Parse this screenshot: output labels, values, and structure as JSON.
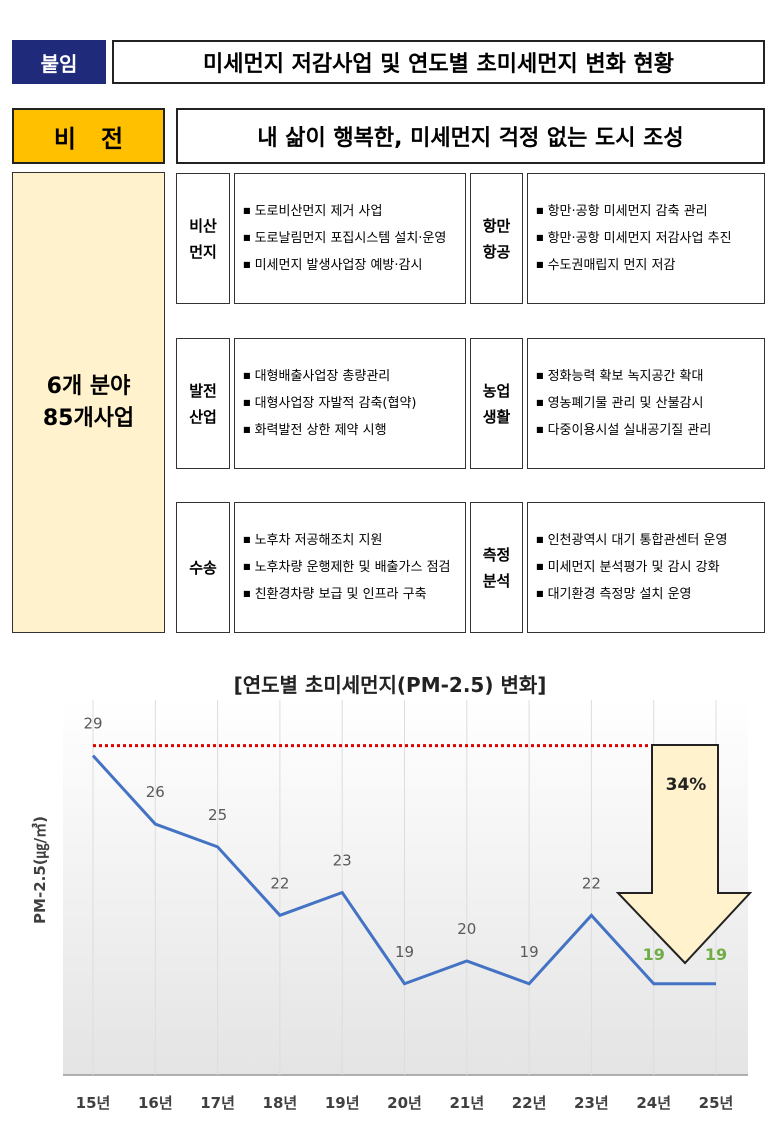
{
  "header": {
    "tag": "붙임",
    "title": "미세먼지 저감사업 및 연도별 초미세먼지 변화 현황"
  },
  "vision": {
    "label": "비   전",
    "text": "내 삶이 행복한, 미세먼지 걱정 없는 도시 조성"
  },
  "summary": {
    "lines": [
      "6개 분야",
      "85개사업"
    ]
  },
  "sectors": [
    {
      "label": [
        "비산",
        "먼지"
      ],
      "items": [
        "도로비산먼지 제거 사업",
        "도로날림먼지 포집시스템 설치·운영",
        "미세먼지 발생사업장 예방·감시"
      ]
    },
    {
      "label": [
        "항만",
        "항공"
      ],
      "items": [
        "항만·공항 미세먼지 감축 관리",
        "항만·공항 미세먼지 저감사업 추진",
        "수도권매립지 먼지 저감"
      ]
    },
    {
      "label": [
        "발전",
        "산업"
      ],
      "items": [
        "대형배출사업장 총량관리",
        "대형사업장 자발적 감축(협약)",
        "화력발전 상한 제약 시행"
      ]
    },
    {
      "label": [
        "농업",
        "생활"
      ],
      "items": [
        "정화능력 확보 녹지공간 확대",
        "영농폐기물 관리 및 산불감시",
        "다중이용시설 실내공기질 관리"
      ]
    },
    {
      "label": [
        "수송"
      ],
      "items": [
        "노후차 저공해조치 지원",
        "노후차량 운행제한 및 배출가스 점검",
        "친환경차량 보급 및 인프라 구축"
      ]
    },
    {
      "label": [
        "측정",
        "분석"
      ],
      "items": [
        "인천광역시 대기 통합관센터 운영",
        "미세먼지 분석평가 및 감시 강화",
        "대기환경 측정망 설치 운영"
      ]
    }
  ],
  "chart_data": {
    "type": "line",
    "title": "[연도별 초미세먼지(PM-2.5) 변화]",
    "y_label": "PM-2.5(㎍/㎥)",
    "categories": [
      "15년",
      "16년",
      "17년",
      "18년",
      "19년",
      "20년",
      "21년",
      "22년",
      "23년",
      "24년",
      "25년"
    ],
    "series": [
      {
        "name": "PM-2.5",
        "color": "#4472c4",
        "values": [
          29,
          26,
          25,
          22,
          23,
          19,
          20,
          19,
          22,
          19,
          19
        ],
        "label_colors": [
          "#595959",
          "#595959",
          "#595959",
          "#595959",
          "#595959",
          "#595959",
          "#595959",
          "#595959",
          "#595959",
          "#70ad47",
          "#70ad47"
        ]
      }
    ],
    "reference_line": {
      "value": 29,
      "color": "#e00000"
    },
    "annotation": "34%",
    "ylim": [
      15,
      31
    ],
    "grid": true
  }
}
